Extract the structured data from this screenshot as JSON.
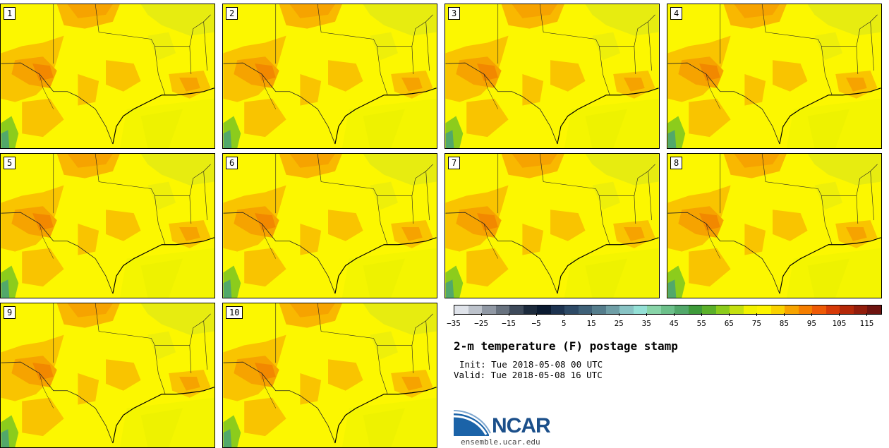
{
  "title": "2-m temperature (F) postage stamp",
  "init": "Init: Tue 2018-05-08 00 UTC",
  "valid": "Valid: Tue 2018-05-08 16 UTC",
  "site": "ensemble.ucar.edu",
  "logo_text": "NCAR",
  "panels": [
    "1",
    "2",
    "3",
    "4",
    "5",
    "6",
    "7",
    "8",
    "9",
    "10"
  ],
  "colorbar": {
    "colors": [
      "#dfe3ea",
      "#bcc2cb",
      "#9098a4",
      "#68727f",
      "#3e4a5a",
      "#1c2a3c",
      "#0a1a30",
      "#1d3350",
      "#2e4a66",
      "#3f6178",
      "#557d8c",
      "#6f9ea6",
      "#88c3c4",
      "#94e0d6",
      "#88d4a8",
      "#6cc08a",
      "#52a86a",
      "#3e9a3a",
      "#5bb02a",
      "#8ccc1c",
      "#c4e010",
      "#f2f200",
      "#fdf400",
      "#fad200",
      "#f7a400",
      "#f57e00",
      "#ee5a06",
      "#d63a08",
      "#b42808",
      "#921d0c",
      "#6e1410"
    ],
    "ticks": [
      "−35",
      "−25",
      "−15",
      "−5",
      "5",
      "15",
      "25",
      "35",
      "45",
      "55",
      "65",
      "75",
      "85",
      "95",
      "105",
      "115"
    ]
  }
}
